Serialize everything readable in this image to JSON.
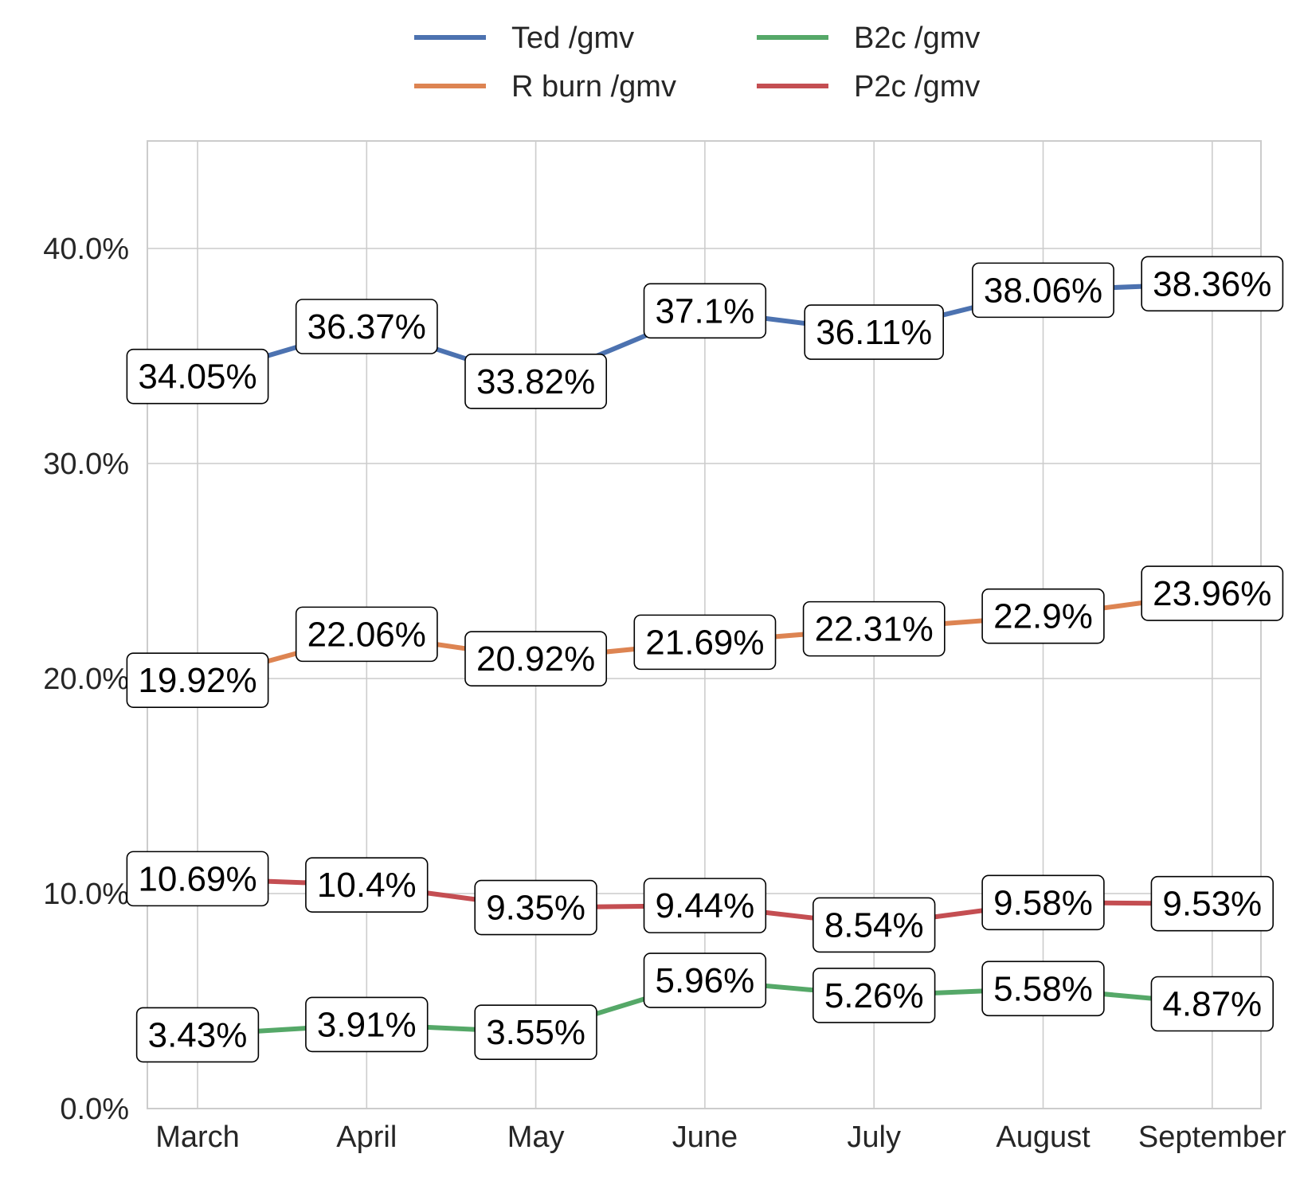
{
  "chart_data": {
    "type": "line",
    "x": [
      "March",
      "April",
      "May",
      "June",
      "July",
      "August",
      "September"
    ],
    "ylim": [
      0,
      45
    ],
    "yticks": [
      0,
      10,
      20,
      30,
      40
    ],
    "ytick_labels": [
      "0.0%",
      "10.0%",
      "20.0%",
      "30.0%",
      "40.0%"
    ],
    "grid": true,
    "legend_placement": "top-center",
    "series": [
      {
        "name": "Ted /gmv",
        "color": "#4c72b0",
        "values": [
          34.05,
          36.37,
          33.82,
          37.1,
          36.11,
          38.06,
          38.36
        ],
        "labels": [
          "34.05%",
          "36.37%",
          "33.82%",
          "37.1%",
          "36.11%",
          "38.06%",
          "38.36%"
        ]
      },
      {
        "name": "R burn /gmv",
        "color": "#dd8452",
        "values": [
          19.92,
          22.06,
          20.92,
          21.69,
          22.31,
          22.9,
          23.96
        ],
        "labels": [
          "19.92%",
          "22.06%",
          "20.92%",
          "21.69%",
          "22.31%",
          "22.9%",
          "23.96%"
        ]
      },
      {
        "name": "B2c /gmv",
        "color": "#55a868",
        "values": [
          3.43,
          3.91,
          3.55,
          5.96,
          5.26,
          5.58,
          4.87
        ],
        "labels": [
          "3.43%",
          "3.91%",
          "3.55%",
          "5.96%",
          "5.26%",
          "5.58%",
          "4.87%"
        ]
      },
      {
        "name": "P2c /gmv",
        "color": "#c44e52",
        "values": [
          10.69,
          10.4,
          9.35,
          9.44,
          8.54,
          9.58,
          9.53
        ],
        "labels": [
          "10.69%",
          "10.4%",
          "9.35%",
          "9.44%",
          "8.54%",
          "9.58%",
          "9.53%"
        ]
      }
    ],
    "legend_order": [
      "Ted /gmv",
      "B2c /gmv",
      "R burn /gmv",
      "P2c /gmv"
    ]
  }
}
